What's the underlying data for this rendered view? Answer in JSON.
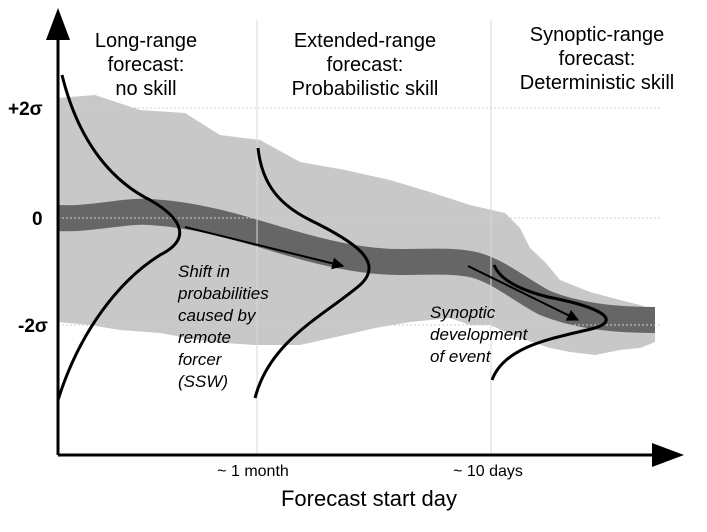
{
  "headers": {
    "long_range": [
      "Long-range",
      "forecast:",
      "no skill"
    ],
    "extended_range": [
      "Extended-range",
      "forecast:",
      "Probabilistic skill"
    ],
    "synoptic_range": [
      "Synoptic-range",
      "forecast:",
      "Deterministic skill"
    ]
  },
  "y_axis": {
    "ticks": {
      "plus2sigma": "+2σ",
      "zero": "0",
      "minus2sigma": "-2σ"
    }
  },
  "x_axis": {
    "label": "Forecast start day",
    "ticks": {
      "one_month": "~ 1 month",
      "ten_days": "~ 10 days"
    }
  },
  "annotations": {
    "shift": [
      "Shift in",
      "probabilities",
      "caused by",
      "remote",
      "forcer",
      "(SSW)"
    ],
    "synoptic": [
      "Synoptic",
      "development",
      "of event"
    ]
  },
  "colors": {
    "outer_band": "#c8c8c8",
    "inner_band": "#666666",
    "lines": "#000000",
    "guides": "#cfcfcf"
  }
}
